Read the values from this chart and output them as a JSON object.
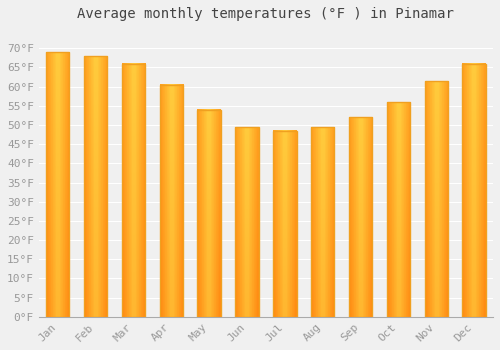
{
  "title": "Average monthly temperatures (°F ) in Pinamar",
  "months": [
    "Jan",
    "Feb",
    "Mar",
    "Apr",
    "May",
    "Jun",
    "Jul",
    "Aug",
    "Sep",
    "Oct",
    "Nov",
    "Dec"
  ],
  "values": [
    69,
    68,
    66,
    60.5,
    54,
    49.5,
    48.5,
    49.5,
    52,
    56,
    61.5,
    66
  ],
  "bar_color_center": "#FFD040",
  "bar_color_edge": "#F0A020",
  "ylim": [
    0,
    75
  ],
  "yticks": [
    0,
    5,
    10,
    15,
    20,
    25,
    30,
    35,
    40,
    45,
    50,
    55,
    60,
    65,
    70
  ],
  "ytick_labels": [
    "0°F",
    "5°F",
    "10°F",
    "15°F",
    "20°F",
    "25°F",
    "30°F",
    "35°F",
    "40°F",
    "45°F",
    "50°F",
    "55°F",
    "60°F",
    "65°F",
    "70°F"
  ],
  "background_color": "#f0f0f0",
  "grid_color": "#ffffff",
  "title_fontsize": 10,
  "tick_fontsize": 8,
  "tick_color": "#999999",
  "title_color": "#444444"
}
